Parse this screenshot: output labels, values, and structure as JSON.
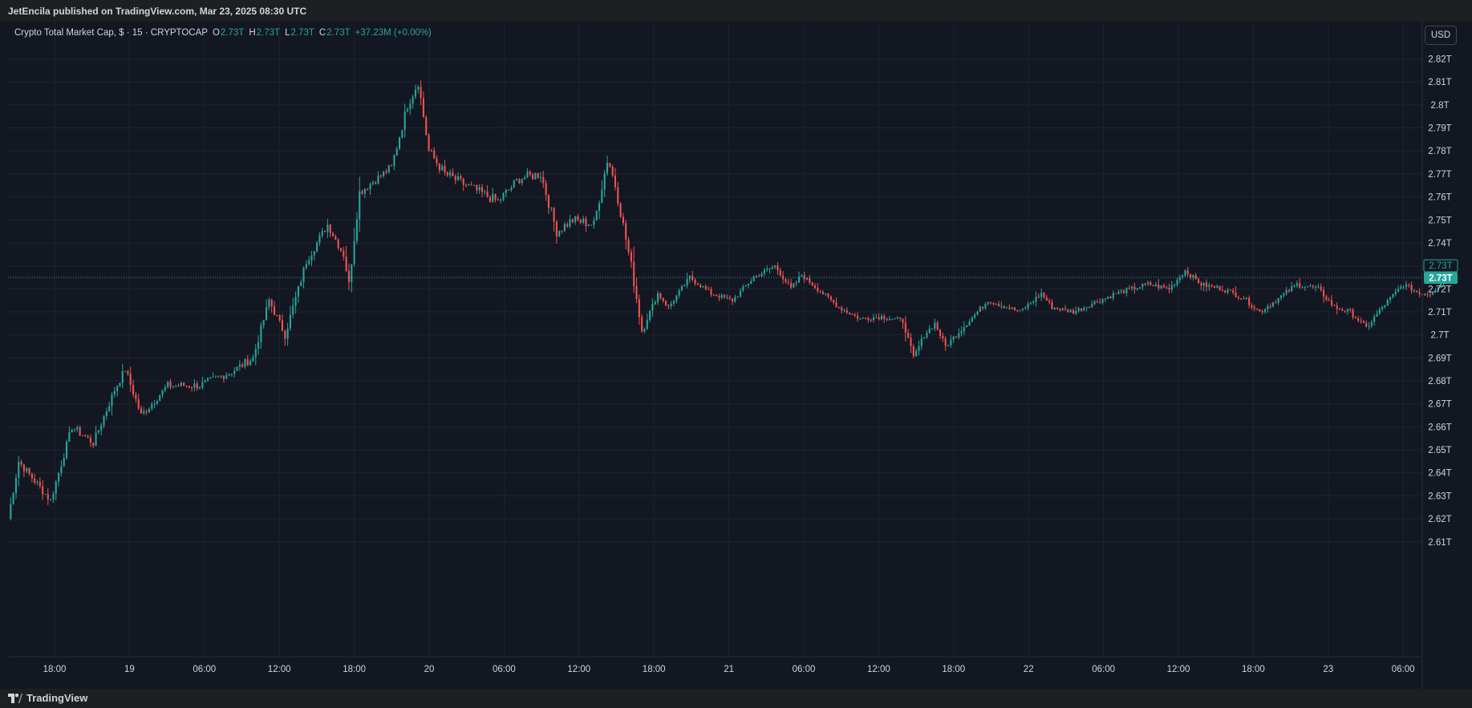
{
  "header": {
    "published": "JetEncila published on TradingView.com, Mar 23, 2025 08:30 UTC"
  },
  "legend": {
    "symbol": "Crypto Total Market Cap, $ · 15 · CRYPTOCAP",
    "o_label": "O",
    "o_value": "2.73T",
    "h_label": "H",
    "h_value": "2.73T",
    "l_label": "L",
    "l_value": "2.73T",
    "c_label": "C",
    "c_value": "2.73T",
    "change": "+37.23M (+0.00%)"
  },
  "currency_button": "USD",
  "footer": {
    "brand": "TradingView"
  },
  "colors": {
    "up": "#26a69a",
    "down": "#ef5350",
    "background": "#131722",
    "grid": "#1f2330",
    "text": "#d1d4dc"
  },
  "chart_data": {
    "type": "candlestick",
    "title": "Crypto Total Market Cap, $ · 15 · CRYPTOCAP",
    "interval": "15",
    "ylim": [
      2.6,
      2.825
    ],
    "y_unit": "T",
    "y_ticks": [
      "2.82T",
      "2.81T",
      "2.8T",
      "2.79T",
      "2.78T",
      "2.77T",
      "2.76T",
      "2.75T",
      "2.74T",
      "2.73T",
      "2.72T",
      "2.71T",
      "2.7T",
      "2.69T",
      "2.68T",
      "2.67T",
      "2.66T",
      "2.65T",
      "2.64T",
      "2.63T",
      "2.62T",
      "2.61T"
    ],
    "x_ticks": [
      "18:00",
      "19",
      "06:00",
      "12:00",
      "18:00",
      "20",
      "06:00",
      "12:00",
      "18:00",
      "21",
      "06:00",
      "12:00",
      "18:00",
      "22",
      "06:00",
      "12:00",
      "18:00",
      "23",
      "06:00"
    ],
    "last_price_labels": [
      "2.73T",
      "2.73T"
    ],
    "last_price": 2.725,
    "keypoints": [
      {
        "hour": 0,
        "value": 2.62
      },
      {
        "hour": 1,
        "value": 2.645
      },
      {
        "hour": 4,
        "value": 2.628
      },
      {
        "hour": 6,
        "value": 2.66
      },
      {
        "hour": 8,
        "value": 2.653
      },
      {
        "hour": 10,
        "value": 2.676
      },
      {
        "hour": 11,
        "value": 2.685
      },
      {
        "hour": 12.5,
        "value": 2.665
      },
      {
        "hour": 15,
        "value": 2.678
      },
      {
        "hour": 18,
        "value": 2.678
      },
      {
        "hour": 21,
        "value": 2.684
      },
      {
        "hour": 23,
        "value": 2.69
      },
      {
        "hour": 24.5,
        "value": 2.715
      },
      {
        "hour": 26,
        "value": 2.7
      },
      {
        "hour": 28,
        "value": 2.732
      },
      {
        "hour": 30,
        "value": 2.748
      },
      {
        "hour": 31.5,
        "value": 2.735
      },
      {
        "hour": 32,
        "value": 2.722
      },
      {
        "hour": 33,
        "value": 2.762
      },
      {
        "hour": 36,
        "value": 2.773
      },
      {
        "hour": 37.5,
        "value": 2.8
      },
      {
        "hour": 38.5,
        "value": 2.81
      },
      {
        "hour": 39.5,
        "value": 2.78
      },
      {
        "hour": 41,
        "value": 2.77
      },
      {
        "hour": 43,
        "value": 2.765
      },
      {
        "hour": 46,
        "value": 2.758
      },
      {
        "hour": 48,
        "value": 2.768
      },
      {
        "hour": 50,
        "value": 2.77
      },
      {
        "hour": 51.5,
        "value": 2.745
      },
      {
        "hour": 53,
        "value": 2.75
      },
      {
        "hour": 55,
        "value": 2.748
      },
      {
        "hour": 56.3,
        "value": 2.777
      },
      {
        "hour": 57,
        "value": 2.765
      },
      {
        "hour": 58.5,
        "value": 2.73
      },
      {
        "hour": 59.5,
        "value": 2.702
      },
      {
        "hour": 61,
        "value": 2.718
      },
      {
        "hour": 62,
        "value": 2.712
      },
      {
        "hour": 64,
        "value": 2.725
      },
      {
        "hour": 66,
        "value": 2.718
      },
      {
        "hour": 68,
        "value": 2.715
      },
      {
        "hour": 70,
        "value": 2.725
      },
      {
        "hour": 72,
        "value": 2.73
      },
      {
        "hour": 73.5,
        "value": 2.72
      },
      {
        "hour": 74.5,
        "value": 2.726
      },
      {
        "hour": 76,
        "value": 2.72
      },
      {
        "hour": 78,
        "value": 2.712
      },
      {
        "hour": 80,
        "value": 2.707
      },
      {
        "hour": 82,
        "value": 2.708
      },
      {
        "hour": 84,
        "value": 2.706
      },
      {
        "hour": 85,
        "value": 2.69
      },
      {
        "hour": 86,
        "value": 2.7
      },
      {
        "hour": 87,
        "value": 2.705
      },
      {
        "hour": 88,
        "value": 2.695
      },
      {
        "hour": 90,
        "value": 2.705
      },
      {
        "hour": 92,
        "value": 2.715
      },
      {
        "hour": 95,
        "value": 2.71
      },
      {
        "hour": 97,
        "value": 2.718
      },
      {
        "hour": 98,
        "value": 2.712
      },
      {
        "hour": 100,
        "value": 2.71
      },
      {
        "hour": 102,
        "value": 2.714
      },
      {
        "hour": 104,
        "value": 2.718
      },
      {
        "hour": 107,
        "value": 2.722
      },
      {
        "hour": 109,
        "value": 2.72
      },
      {
        "hour": 110.5,
        "value": 2.728
      },
      {
        "hour": 112,
        "value": 2.722
      },
      {
        "hour": 114,
        "value": 2.72
      },
      {
        "hour": 116,
        "value": 2.716
      },
      {
        "hour": 117.5,
        "value": 2.71
      },
      {
        "hour": 119,
        "value": 2.715
      },
      {
        "hour": 121,
        "value": 2.722
      },
      {
        "hour": 123,
        "value": 2.72
      },
      {
        "hour": 124.5,
        "value": 2.712
      },
      {
        "hour": 126,
        "value": 2.71
      },
      {
        "hour": 127.5,
        "value": 2.703
      },
      {
        "hour": 129,
        "value": 2.712
      },
      {
        "hour": 131,
        "value": 2.722
      },
      {
        "hour": 132.5,
        "value": 2.718
      },
      {
        "hour": 133.5,
        "value": 2.718
      },
      {
        "hour": 135,
        "value": 2.725
      }
    ]
  }
}
